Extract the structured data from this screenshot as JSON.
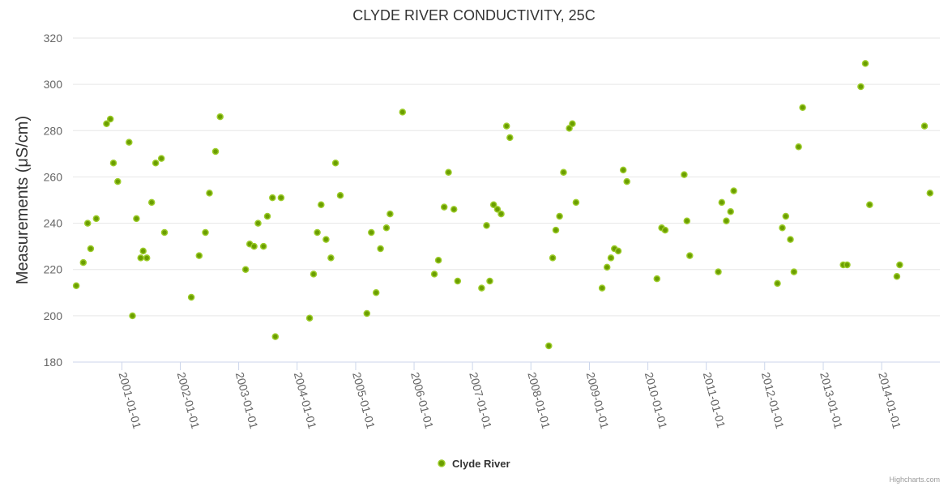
{
  "chart_data": {
    "type": "scatter",
    "title": "CLYDE RIVER CONDUCTIVITY, 25C",
    "ylabel": "Measurements (μS/cm)",
    "ylim": [
      180,
      320
    ],
    "yticks": [
      "180",
      "200",
      "220",
      "240",
      "260",
      "280",
      "300",
      "320"
    ],
    "xlim": [
      "2000-03-01",
      "2014-12-31"
    ],
    "xticks": [
      "2001-01-01",
      "2002-01-01",
      "2003-01-01",
      "2004-01-01",
      "2005-01-01",
      "2006-01-01",
      "2007-01-01",
      "2008-01-01",
      "2009-01-01",
      "2010-01-01",
      "2011-01-01",
      "2012-01-01",
      "2013-01-01",
      "2014-01-01"
    ],
    "grid": true,
    "legend_position": "bottom-center",
    "colors": {
      "fill": "#6b9e00",
      "stroke": "#9ccc2a"
    },
    "series": [
      {
        "name": "Clyde River",
        "points": [
          [
            "2000-03-22",
            213
          ],
          [
            "2000-05-05",
            223
          ],
          [
            "2000-06-01",
            240
          ],
          [
            "2000-06-20",
            229
          ],
          [
            "2000-07-25",
            242
          ],
          [
            "2000-09-27",
            283
          ],
          [
            "2000-10-21",
            285
          ],
          [
            "2000-11-09",
            266
          ],
          [
            "2000-12-06",
            258
          ],
          [
            "2001-02-15",
            275
          ],
          [
            "2001-03-08",
            200
          ],
          [
            "2001-04-02",
            242
          ],
          [
            "2001-04-29",
            225
          ],
          [
            "2001-05-14",
            228
          ],
          [
            "2001-06-06",
            225
          ],
          [
            "2001-07-06",
            249
          ],
          [
            "2001-07-31",
            266
          ],
          [
            "2001-09-05",
            268
          ],
          [
            "2001-09-24",
            236
          ],
          [
            "2002-03-11",
            208
          ],
          [
            "2002-04-29",
            226
          ],
          [
            "2002-06-07",
            236
          ],
          [
            "2002-07-02",
            253
          ],
          [
            "2002-08-09",
            271
          ],
          [
            "2002-09-07",
            286
          ],
          [
            "2003-02-13",
            220
          ],
          [
            "2003-03-11",
            231
          ],
          [
            "2003-04-07",
            230
          ],
          [
            "2003-05-02",
            240
          ],
          [
            "2003-06-05",
            230
          ],
          [
            "2003-06-29",
            243
          ],
          [
            "2003-07-31",
            251
          ],
          [
            "2003-08-18",
            191
          ],
          [
            "2003-09-23",
            251
          ],
          [
            "2004-03-19",
            199
          ],
          [
            "2004-04-13",
            218
          ],
          [
            "2004-05-06",
            236
          ],
          [
            "2004-05-30",
            248
          ],
          [
            "2004-06-30",
            233
          ],
          [
            "2004-07-30",
            225
          ],
          [
            "2004-08-28",
            266
          ],
          [
            "2004-09-27",
            252
          ],
          [
            "2005-03-12",
            201
          ],
          [
            "2005-04-09",
            236
          ],
          [
            "2005-05-09",
            210
          ],
          [
            "2005-06-05",
            229
          ],
          [
            "2005-07-12",
            238
          ],
          [
            "2005-08-04",
            244
          ],
          [
            "2005-10-21",
            288
          ],
          [
            "2006-05-08",
            218
          ],
          [
            "2006-06-02",
            224
          ],
          [
            "2006-07-08",
            247
          ],
          [
            "2006-08-04",
            262
          ],
          [
            "2006-09-07",
            246
          ],
          [
            "2006-09-30",
            215
          ],
          [
            "2007-02-27",
            212
          ],
          [
            "2007-03-30",
            239
          ],
          [
            "2007-04-19",
            215
          ],
          [
            "2007-05-13",
            248
          ],
          [
            "2007-06-06",
            246
          ],
          [
            "2007-06-29",
            244
          ],
          [
            "2007-08-02",
            282
          ],
          [
            "2007-08-23",
            277
          ],
          [
            "2008-04-22",
            187
          ],
          [
            "2008-05-16",
            225
          ],
          [
            "2008-06-05",
            237
          ],
          [
            "2008-06-28",
            243
          ],
          [
            "2008-07-23",
            262
          ],
          [
            "2008-08-28",
            281
          ],
          [
            "2008-09-16",
            283
          ],
          [
            "2008-10-09",
            249
          ],
          [
            "2009-03-21",
            212
          ],
          [
            "2009-04-21",
            221
          ],
          [
            "2009-05-15",
            225
          ],
          [
            "2009-06-06",
            229
          ],
          [
            "2009-06-30",
            228
          ],
          [
            "2009-07-31",
            263
          ],
          [
            "2009-08-23",
            258
          ],
          [
            "2010-02-27",
            216
          ],
          [
            "2010-03-28",
            238
          ],
          [
            "2010-04-19",
            237
          ],
          [
            "2010-08-16",
            261
          ],
          [
            "2010-09-02",
            241
          ],
          [
            "2010-09-20",
            226
          ],
          [
            "2011-03-17",
            219
          ],
          [
            "2011-04-08",
            249
          ],
          [
            "2011-05-06",
            241
          ],
          [
            "2011-06-02",
            245
          ],
          [
            "2011-06-22",
            254
          ],
          [
            "2012-03-21",
            214
          ],
          [
            "2012-04-20",
            238
          ],
          [
            "2012-05-12",
            243
          ],
          [
            "2012-06-10",
            233
          ],
          [
            "2012-07-02",
            219
          ],
          [
            "2012-07-31",
            273
          ],
          [
            "2012-08-25",
            290
          ],
          [
            "2013-05-06",
            222
          ],
          [
            "2013-05-30",
            222
          ],
          [
            "2013-08-24",
            299
          ],
          [
            "2013-09-21",
            309
          ],
          [
            "2013-10-18",
            248
          ],
          [
            "2014-04-06",
            217
          ],
          [
            "2014-04-24",
            222
          ],
          [
            "2014-09-26",
            282
          ],
          [
            "2014-10-30",
            253
          ]
        ]
      }
    ],
    "credit": "Highcharts.com"
  }
}
